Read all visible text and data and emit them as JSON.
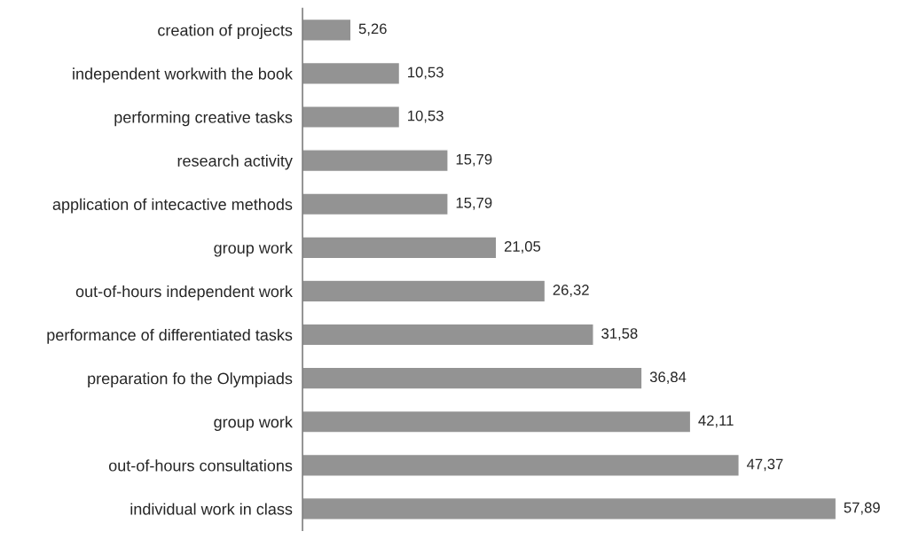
{
  "chart_data": {
    "type": "bar",
    "orientation": "horizontal",
    "categories": [
      "creation of projects",
      "independent workwith the book",
      "performing creative tasks",
      "research activity",
      "application of intecactive methods",
      "group work",
      "out-of-hours independent work",
      "performance of differentiated tasks",
      "preparation fo the Olympiads",
      "group work",
      "out-of-hours consultations",
      "individual work in class"
    ],
    "values": [
      5.26,
      10.53,
      10.53,
      15.79,
      15.79,
      21.05,
      26.32,
      31.58,
      36.84,
      42.11,
      47.37,
      57.89
    ],
    "value_labels": [
      "5,26",
      "10,53",
      "10,53",
      "15,79",
      "15,79",
      "21,05",
      "26,32",
      "31,58",
      "36,84",
      "42,11",
      "47,37",
      "57,89"
    ],
    "color": "#939393",
    "grid": false,
    "legend": false
  }
}
